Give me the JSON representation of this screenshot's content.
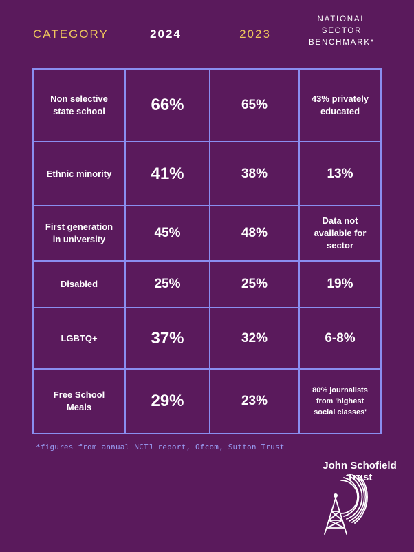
{
  "header": {
    "category": "CATEGORY",
    "year_current": "2024",
    "year_previous": "2023",
    "benchmark_line1": "NATIONAL",
    "benchmark_line2": "SECTOR",
    "benchmark_line3": "BENCHMARK*"
  },
  "rows": [
    {
      "category": "Non selective state school",
      "y2024": "66%",
      "y2023": "65%",
      "benchmark": "43% privately educated"
    },
    {
      "category": "Ethnic minority",
      "y2024": "41%",
      "y2023": "38%",
      "benchmark": "13%"
    },
    {
      "category": "First generation in university",
      "y2024": "45%",
      "y2023": "48%",
      "benchmark": "Data not available for sector"
    },
    {
      "category": "Disabled",
      "y2024": "25%",
      "y2023": "25%",
      "benchmark": "19%"
    },
    {
      "category": "LGBTQ+",
      "y2024": "37%",
      "y2023": "32%",
      "benchmark": "6-8%"
    },
    {
      "category": "Free School Meals",
      "y2024": "29%",
      "y2023": "23%",
      "benchmark": "80% journalists from 'highest social classes'"
    }
  ],
  "footnote": "*figures from annual NCTJ report, Ofcom, Sutton Trust",
  "brand": {
    "line1": "John Schofield",
    "line2": "Trust",
    "logo_icon": "radio-tower-icon"
  },
  "colors": {
    "background": "#5a1a5c",
    "accent": "#f0c75c",
    "grid": "#8a8ef0",
    "footnote": "#9a9ef5"
  }
}
